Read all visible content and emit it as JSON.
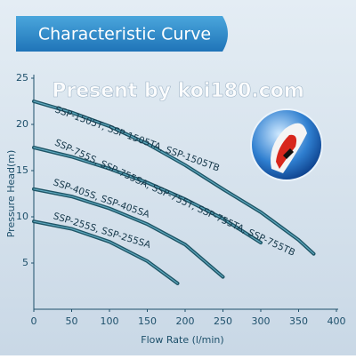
{
  "chart_data": {
    "type": "line",
    "title": "Characteristic Curve",
    "watermark": "Present by koi180.com",
    "x_label": "Flow Rate (l/min)",
    "y_label": "Pressure Head(m)",
    "xlim": [
      0,
      400
    ],
    "xticks": [
      0,
      50,
      100,
      150,
      200,
      250,
      300,
      350,
      400
    ],
    "ylim": [
      0,
      25
    ],
    "yticks": [
      5,
      10,
      15,
      20,
      25
    ],
    "series": [
      {
        "name": "SSP-1505T, SSP-1505TA, SSP-1505TB",
        "color": "#1e5566",
        "x": [
          0,
          50,
          100,
          150,
          200,
          250,
          300,
          350,
          370
        ],
        "values": [
          22.5,
          21.3,
          19.8,
          17.9,
          15.6,
          13,
          10.5,
          7.5,
          6
        ]
      },
      {
        "name": "SSP-755S, SSP-755SA, SSP-755T, SSP-755TA, SSP-755TB",
        "color": "#1e5566",
        "x": [
          0,
          50,
          100,
          150,
          200,
          250,
          300
        ],
        "values": [
          17.5,
          16.5,
          15.2,
          13.7,
          11.9,
          9.8,
          7.2
        ]
      },
      {
        "name": "SSP-405S, SSP-405SA",
        "color": "#1e5566",
        "x": [
          0,
          50,
          100,
          150,
          200,
          250
        ],
        "values": [
          13,
          12.2,
          10.9,
          9.2,
          7,
          3.5
        ]
      },
      {
        "name": "SSP-255S, SSP-255SA",
        "color": "#1e5566",
        "x": [
          0,
          50,
          100,
          150,
          190
        ],
        "values": [
          9.5,
          8.7,
          7.3,
          5.2,
          2.8
        ]
      }
    ]
  }
}
